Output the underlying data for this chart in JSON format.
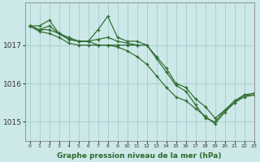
{
  "title": "Graphe pression niveau de la mer (hPa)",
  "bg_color": "#cce8e8",
  "grid_color": "#aad0d0",
  "line_color": "#2d6a2d",
  "marker_color": "#2d6a2d",
  "xlim": [
    -0.5,
    23
  ],
  "ylim": [
    1014.5,
    1018.1
  ],
  "yticks": [
    1015,
    1016,
    1017
  ],
  "xticks": [
    0,
    1,
    2,
    3,
    4,
    5,
    6,
    7,
    8,
    9,
    10,
    11,
    12,
    13,
    14,
    15,
    16,
    17,
    18,
    19,
    20,
    21,
    22,
    23
  ],
  "series": [
    {
      "comment": "line 1 - smooth decline, full 24h",
      "x": [
        0,
        1,
        2,
        3,
        4,
        5,
        6,
        7,
        8,
        9,
        10,
        11,
        12,
        13,
        14,
        15,
        16,
        17,
        18,
        19,
        20,
        21,
        22,
        23
      ],
      "y": [
        1017.5,
        1017.4,
        1017.4,
        1017.3,
        1017.2,
        1017.1,
        1017.1,
        1017.0,
        1017.0,
        1017.0,
        1017.0,
        1017.0,
        1017.0,
        1016.7,
        1016.4,
        1016.0,
        1015.9,
        1015.6,
        1015.4,
        1015.1,
        1015.3,
        1015.5,
        1015.7,
        1015.7
      ]
    },
    {
      "comment": "line 2 - has peak at x=2, ends around x=11",
      "x": [
        0,
        1,
        2,
        3,
        4,
        5,
        6,
        7,
        8,
        9,
        10,
        11
      ],
      "y": [
        1017.5,
        1017.5,
        1017.65,
        1017.3,
        1017.15,
        1017.1,
        1017.1,
        1017.15,
        1017.2,
        1017.1,
        1017.05,
        1017.0
      ]
    },
    {
      "comment": "line 3 - peak at x=8 (1017.75), then sharp decline",
      "x": [
        0,
        1,
        2,
        3,
        4,
        5,
        6,
        7,
        8,
        9,
        10,
        11,
        12,
        13,
        14,
        15,
        16,
        17,
        18,
        19,
        20,
        21,
        22,
        23
      ],
      "y": [
        1017.5,
        1017.4,
        1017.5,
        1017.3,
        1017.15,
        1017.1,
        1017.1,
        1017.4,
        1017.75,
        1017.2,
        1017.1,
        1017.1,
        1017.0,
        1016.65,
        1016.3,
        1015.95,
        1015.8,
        1015.45,
        1015.1,
        1015.0,
        1015.3,
        1015.55,
        1015.7,
        1015.75
      ]
    },
    {
      "comment": "line 4 - steeper decline, bottom line",
      "x": [
        0,
        1,
        2,
        3,
        4,
        5,
        6,
        7,
        8,
        9,
        10,
        11,
        12,
        13,
        14,
        15,
        16,
        17,
        18,
        19,
        20,
        21,
        22,
        23
      ],
      "y": [
        1017.5,
        1017.35,
        1017.3,
        1017.2,
        1017.05,
        1017.0,
        1017.0,
        1017.0,
        1017.0,
        1016.95,
        1016.85,
        1016.7,
        1016.5,
        1016.2,
        1015.9,
        1015.65,
        1015.55,
        1015.35,
        1015.15,
        1014.95,
        1015.25,
        1015.5,
        1015.65,
        1015.7
      ]
    }
  ]
}
